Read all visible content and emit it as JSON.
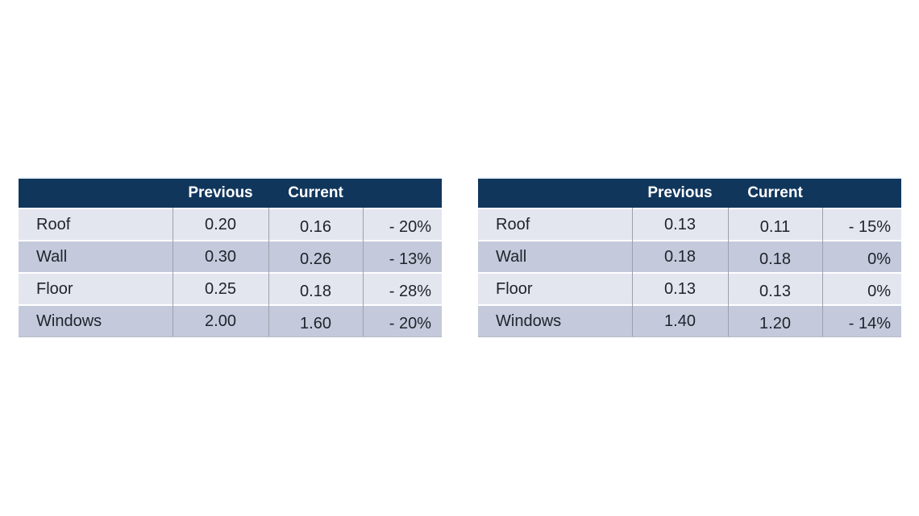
{
  "colors": {
    "header_bg": "#11365C",
    "row_light": "#E3E6EF",
    "row_dark": "#C4CADB",
    "grid_line": "#9CA1AC",
    "header_text": "#FFFFFF",
    "body_text": "#21232C",
    "page_bg": "#FFFFFF"
  },
  "chart_data": [
    {
      "type": "table",
      "columns": [
        "",
        "Previous",
        "Current",
        ""
      ],
      "rows": [
        [
          "Roof",
          "0.20",
          "0.16",
          "- 20%"
        ],
        [
          "Wall",
          "0.30",
          "0.26",
          "- 13%"
        ],
        [
          "Floor",
          "0.25",
          "0.18",
          "- 28%"
        ],
        [
          "Windows",
          "2.00",
          "1.60",
          "- 20%"
        ]
      ]
    },
    {
      "type": "table",
      "columns": [
        "",
        "Previous",
        "Current",
        ""
      ],
      "rows": [
        [
          "Roof",
          "0.13",
          "0.11",
          "- 15%"
        ],
        [
          "Wall",
          "0.18",
          "0.18",
          "0%"
        ],
        [
          "Floor",
          "0.13",
          "0.13",
          "0%"
        ],
        [
          "Windows",
          "1.40",
          "1.20",
          "- 14%"
        ]
      ]
    }
  ]
}
